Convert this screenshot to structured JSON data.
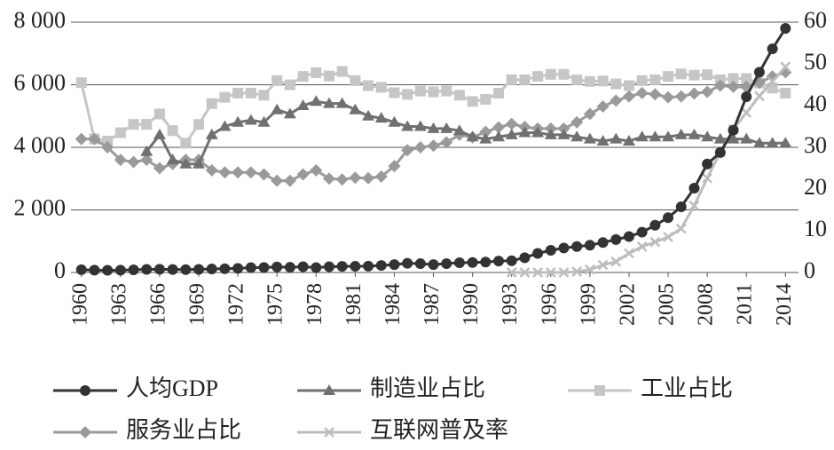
{
  "chart_data": {
    "type": "line",
    "x": [
      1960,
      1961,
      1962,
      1963,
      1964,
      1965,
      1966,
      1967,
      1968,
      1969,
      1970,
      1971,
      1972,
      1973,
      1974,
      1975,
      1976,
      1977,
      1978,
      1979,
      1980,
      1981,
      1982,
      1983,
      1984,
      1985,
      1986,
      1987,
      1988,
      1989,
      1990,
      1991,
      1992,
      1993,
      1994,
      1995,
      1996,
      1997,
      1998,
      1999,
      2000,
      2001,
      2002,
      2003,
      2004,
      2005,
      2006,
      2007,
      2008,
      2009,
      2010,
      2011,
      2012,
      2013,
      2014
    ],
    "xlim": [
      1959.2,
      2015
    ],
    "xticks": [
      1960,
      1963,
      1966,
      1969,
      1972,
      1975,
      1978,
      1981,
      1984,
      1987,
      1990,
      1993,
      1996,
      1999,
      2002,
      2005,
      2008,
      2011,
      2014
    ],
    "ylim": [
      0,
      8000
    ],
    "yticks": [
      0,
      {
        "value": 2000,
        "label": "2 000"
      },
      {
        "value": 4000,
        "label": "4 000"
      },
      {
        "value": 6000,
        "label": "6 000"
      },
      {
        "value": 8000,
        "label": "8 000"
      }
    ],
    "y2lim": [
      0,
      60
    ],
    "y2ticks": [
      0,
      10,
      20,
      30,
      40,
      50,
      60
    ],
    "grid": true,
    "series": [
      {
        "name": "人均GDP",
        "color": "#333333",
        "marker": "circle",
        "axis": "y",
        "values": [
          90,
          76,
          71,
          74,
          85,
          98,
          104,
          97,
          91,
          100,
          113,
          119,
          132,
          157,
          160,
          178,
          165,
          185,
          156,
          184,
          195,
          197,
          203,
          225,
          251,
          294,
          282,
          252,
          284,
          311,
          318,
          333,
          366,
          377,
          473,
          610,
          709,
          782,
          829,
          873,
          959,
          1053,
          1149,
          1289,
          1509,
          1753,
          2099,
          2694,
          3468,
          3832,
          4550,
          5618,
          6400,
          7150,
          7800
        ]
      },
      {
        "name": "制造业占比",
        "color": "#707070",
        "marker": "triangle",
        "axis": "y2",
        "values": [
          null,
          null,
          null,
          null,
          null,
          29,
          33,
          27,
          26,
          26,
          33,
          35,
          36,
          36.5,
          36,
          39,
          38,
          40,
          41,
          40.5,
          40.5,
          39,
          37.5,
          37,
          36,
          35,
          35,
          34.5,
          34.5,
          34,
          32.5,
          32,
          32.5,
          33,
          33.5,
          33.5,
          33,
          33,
          32.5,
          32,
          31.5,
          32,
          31.5,
          32.5,
          32.5,
          32.5,
          33,
          33,
          32.5,
          32,
          32,
          32,
          31,
          31,
          31
        ]
      },
      {
        "name": "工业占比",
        "color": "#c6c6c6",
        "marker": "square",
        "axis": "y2",
        "values": [
          45.5,
          32,
          31.5,
          33.5,
          35.5,
          35.5,
          38,
          34,
          31,
          35.5,
          40.5,
          42,
          43,
          43,
          42.5,
          46,
          45,
          47,
          47.9,
          47.1,
          48.2,
          46,
          44.8,
          44.4,
          43.1,
          42.7,
          43.5,
          43.3,
          43.5,
          42.5,
          41,
          41.5,
          43,
          46.2,
          46.2,
          47,
          47.5,
          47.5,
          46.2,
          45.8,
          45.9,
          45.2,
          44.8,
          46,
          46.2,
          47,
          47.6,
          47.3,
          47.4,
          46.2,
          46.5,
          46.5,
          45.4,
          44.2,
          43
        ]
      },
      {
        "name": "服务业占比",
        "color": "#9a9a9a",
        "marker": "diamond",
        "axis": "y2",
        "values": [
          32,
          32,
          30,
          27,
          26.5,
          27,
          25,
          26,
          27,
          27,
          24.5,
          24,
          24,
          24,
          23.5,
          22,
          22,
          23.5,
          24.5,
          22.5,
          22.3,
          22.7,
          22.6,
          23,
          25.5,
          29.3,
          30,
          30.4,
          31.2,
          33,
          32.4,
          33.7,
          34.8,
          35.6,
          34.9,
          34.5,
          34.5,
          34.5,
          36,
          38,
          39.8,
          41.2,
          42.2,
          43,
          42.7,
          42,
          42.2,
          42.9,
          43.3,
          44.8,
          44.5,
          44.5,
          45.5,
          47,
          48
        ]
      },
      {
        "name": "互联网普及率",
        "color": "#bdbdbd",
        "marker": "x",
        "axis": "y2",
        "values": [
          null,
          null,
          null,
          null,
          null,
          null,
          null,
          null,
          null,
          null,
          null,
          null,
          null,
          null,
          null,
          null,
          null,
          null,
          null,
          null,
          null,
          null,
          null,
          null,
          null,
          null,
          null,
          null,
          null,
          null,
          null,
          null,
          null,
          0,
          0,
          0,
          0,
          0,
          0.2,
          0.7,
          1.8,
          2.6,
          4.6,
          6.2,
          7.3,
          8.5,
          10.5,
          16,
          22.6,
          28.9,
          34.3,
          38.3,
          42.3,
          45.8,
          49.3
        ]
      }
    ]
  }
}
